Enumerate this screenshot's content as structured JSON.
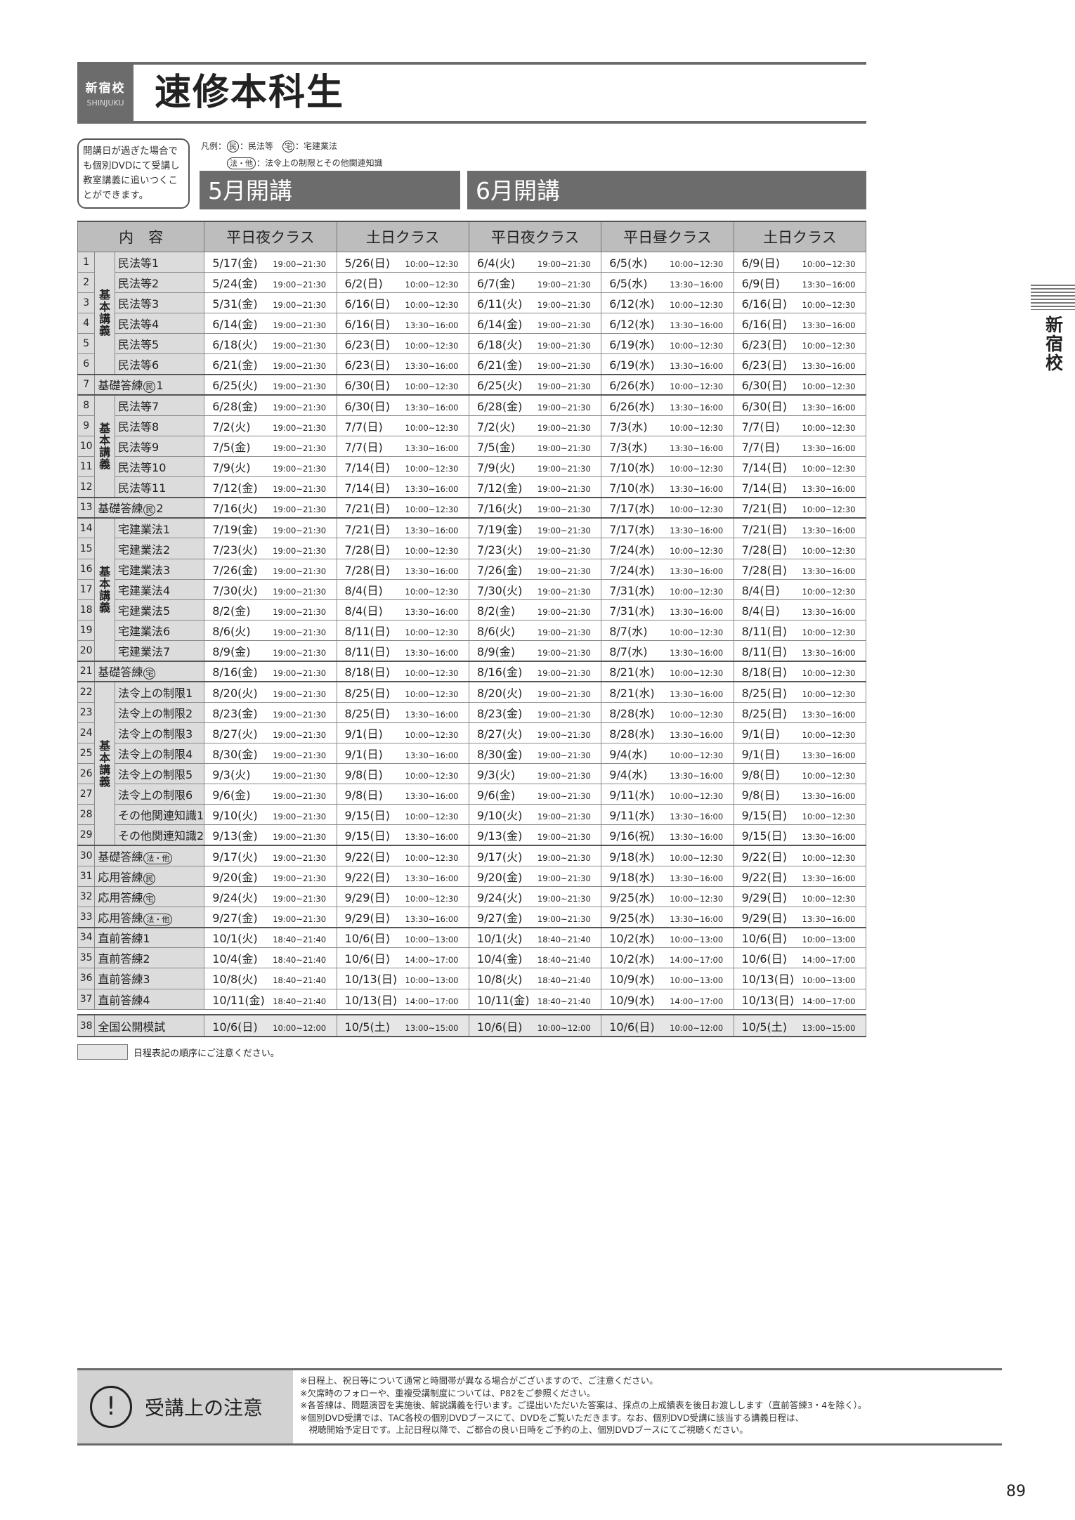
{
  "header": {
    "school": "新宿校",
    "school_en": "SHINJUKU",
    "title": "速修本科生"
  },
  "dvd_note": "開講日が過ぎた場合でも個別DVDにて受講し教室講義に追いつくことができます。",
  "legend": {
    "prefix": "凡例：",
    "items": [
      {
        "mark": "民",
        "text": "：民法等"
      },
      {
        "mark": "宅",
        "text": "：宅建業法"
      },
      {
        "mark": "法・他",
        "text": "：法令上の制限とその他関連知識"
      }
    ]
  },
  "months": [
    "5月開講",
    "6月開講"
  ],
  "columns": [
    "内　容",
    "平日夜クラス",
    "土日クラス",
    "平日夜クラス",
    "平日昼クラス",
    "土日クラス"
  ],
  "groups": [
    {
      "label": "基本講義",
      "from": 1,
      "to": 6
    },
    {
      "label": "基本講義",
      "from": 8,
      "to": 12
    },
    {
      "label": "基本講義",
      "from": 14,
      "to": 20
    },
    {
      "label": "基本講義",
      "from": 22,
      "to": 29
    }
  ],
  "rows": [
    {
      "n": "1",
      "label": "民法等1",
      "cells": [
        [
          "5/17(金)",
          "19:00~21:30"
        ],
        [
          "5/26(日)",
          "10:00~12:30"
        ],
        [
          "6/4(火)",
          "19:00~21:30"
        ],
        [
          "6/5(水)",
          "10:00~12:30"
        ],
        [
          "6/9(日)",
          "10:00~12:30"
        ]
      ]
    },
    {
      "n": "2",
      "label": "民法等2",
      "cells": [
        [
          "5/24(金)",
          "19:00~21:30"
        ],
        [
          "6/2(日)",
          "10:00~12:30"
        ],
        [
          "6/7(金)",
          "19:00~21:30"
        ],
        [
          "6/5(水)",
          "13:30~16:00"
        ],
        [
          "6/9(日)",
          "13:30~16:00"
        ]
      ]
    },
    {
      "n": "3",
      "label": "民法等3",
      "cells": [
        [
          "5/31(金)",
          "19:00~21:30"
        ],
        [
          "6/16(日)",
          "10:00~12:30"
        ],
        [
          "6/11(火)",
          "19:00~21:30"
        ],
        [
          "6/12(水)",
          "10:00~12:30"
        ],
        [
          "6/16(日)",
          "10:00~12:30"
        ]
      ]
    },
    {
      "n": "4",
      "label": "民法等4",
      "cells": [
        [
          "6/14(金)",
          "19:00~21:30"
        ],
        [
          "6/16(日)",
          "13:30~16:00"
        ],
        [
          "6/14(金)",
          "19:00~21:30"
        ],
        [
          "6/12(水)",
          "13:30~16:00"
        ],
        [
          "6/16(日)",
          "13:30~16:00"
        ]
      ]
    },
    {
      "n": "5",
      "label": "民法等5",
      "cells": [
        [
          "6/18(火)",
          "19:00~21:30"
        ],
        [
          "6/23(日)",
          "10:00~12:30"
        ],
        [
          "6/18(火)",
          "19:00~21:30"
        ],
        [
          "6/19(水)",
          "10:00~12:30"
        ],
        [
          "6/23(日)",
          "10:00~12:30"
        ]
      ]
    },
    {
      "n": "6",
      "label": "民法等6",
      "cells": [
        [
          "6/21(金)",
          "19:00~21:30"
        ],
        [
          "6/23(日)",
          "13:30~16:00"
        ],
        [
          "6/21(金)",
          "19:00~21:30"
        ],
        [
          "6/19(水)",
          "13:30~16:00"
        ],
        [
          "6/23(日)",
          "13:30~16:00"
        ]
      ]
    },
    {
      "n": "7",
      "label": "基礎答練",
      "mark": "民",
      "suffix": "1",
      "cells": [
        [
          "6/25(火)",
          "19:00~21:30"
        ],
        [
          "6/30(日)",
          "10:00~12:30"
        ],
        [
          "6/25(火)",
          "19:00~21:30"
        ],
        [
          "6/26(水)",
          "10:00~12:30"
        ],
        [
          "6/30(日)",
          "10:00~12:30"
        ]
      ]
    },
    {
      "n": "8",
      "label": "民法等7",
      "cells": [
        [
          "6/28(金)",
          "19:00~21:30"
        ],
        [
          "6/30(日)",
          "13:30~16:00"
        ],
        [
          "6/28(金)",
          "19:00~21:30"
        ],
        [
          "6/26(水)",
          "13:30~16:00"
        ],
        [
          "6/30(日)",
          "13:30~16:00"
        ]
      ]
    },
    {
      "n": "9",
      "label": "民法等8",
      "cells": [
        [
          "7/2(火)",
          "19:00~21:30"
        ],
        [
          "7/7(日)",
          "10:00~12:30"
        ],
        [
          "7/2(火)",
          "19:00~21:30"
        ],
        [
          "7/3(水)",
          "10:00~12:30"
        ],
        [
          "7/7(日)",
          "10:00~12:30"
        ]
      ]
    },
    {
      "n": "10",
      "label": "民法等9",
      "cells": [
        [
          "7/5(金)",
          "19:00~21:30"
        ],
        [
          "7/7(日)",
          "13:30~16:00"
        ],
        [
          "7/5(金)",
          "19:00~21:30"
        ],
        [
          "7/3(水)",
          "13:30~16:00"
        ],
        [
          "7/7(日)",
          "13:30~16:00"
        ]
      ]
    },
    {
      "n": "11",
      "label": "民法等10",
      "cells": [
        [
          "7/9(火)",
          "19:00~21:30"
        ],
        [
          "7/14(日)",
          "10:00~12:30"
        ],
        [
          "7/9(火)",
          "19:00~21:30"
        ],
        [
          "7/10(水)",
          "10:00~12:30"
        ],
        [
          "7/14(日)",
          "10:00~12:30"
        ]
      ]
    },
    {
      "n": "12",
      "label": "民法等11",
      "cells": [
        [
          "7/12(金)",
          "19:00~21:30"
        ],
        [
          "7/14(日)",
          "13:30~16:00"
        ],
        [
          "7/12(金)",
          "19:00~21:30"
        ],
        [
          "7/10(水)",
          "13:30~16:00"
        ],
        [
          "7/14(日)",
          "13:30~16:00"
        ]
      ]
    },
    {
      "n": "13",
      "label": "基礎答練",
      "mark": "民",
      "suffix": "2",
      "cells": [
        [
          "7/16(火)",
          "19:00~21:30"
        ],
        [
          "7/21(日)",
          "10:00~12:30"
        ],
        [
          "7/16(火)",
          "19:00~21:30"
        ],
        [
          "7/17(水)",
          "10:00~12:30"
        ],
        [
          "7/21(日)",
          "10:00~12:30"
        ]
      ]
    },
    {
      "n": "14",
      "label": "宅建業法1",
      "cells": [
        [
          "7/19(金)",
          "19:00~21:30"
        ],
        [
          "7/21(日)",
          "13:30~16:00"
        ],
        [
          "7/19(金)",
          "19:00~21:30"
        ],
        [
          "7/17(水)",
          "13:30~16:00"
        ],
        [
          "7/21(日)",
          "13:30~16:00"
        ]
      ]
    },
    {
      "n": "15",
      "label": "宅建業法2",
      "cells": [
        [
          "7/23(火)",
          "19:00~21:30"
        ],
        [
          "7/28(日)",
          "10:00~12:30"
        ],
        [
          "7/23(火)",
          "19:00~21:30"
        ],
        [
          "7/24(水)",
          "10:00~12:30"
        ],
        [
          "7/28(日)",
          "10:00~12:30"
        ]
      ]
    },
    {
      "n": "16",
      "label": "宅建業法3",
      "cells": [
        [
          "7/26(金)",
          "19:00~21:30"
        ],
        [
          "7/28(日)",
          "13:30~16:00"
        ],
        [
          "7/26(金)",
          "19:00~21:30"
        ],
        [
          "7/24(水)",
          "13:30~16:00"
        ],
        [
          "7/28(日)",
          "13:30~16:00"
        ]
      ]
    },
    {
      "n": "17",
      "label": "宅建業法4",
      "cells": [
        [
          "7/30(火)",
          "19:00~21:30"
        ],
        [
          "8/4(日)",
          "10:00~12:30"
        ],
        [
          "7/30(火)",
          "19:00~21:30"
        ],
        [
          "7/31(水)",
          "10:00~12:30"
        ],
        [
          "8/4(日)",
          "10:00~12:30"
        ]
      ]
    },
    {
      "n": "18",
      "label": "宅建業法5",
      "cells": [
        [
          "8/2(金)",
          "19:00~21:30"
        ],
        [
          "8/4(日)",
          "13:30~16:00"
        ],
        [
          "8/2(金)",
          "19:00~21:30"
        ],
        [
          "7/31(水)",
          "13:30~16:00"
        ],
        [
          "8/4(日)",
          "13:30~16:00"
        ]
      ]
    },
    {
      "n": "19",
      "label": "宅建業法6",
      "cells": [
        [
          "8/6(火)",
          "19:00~21:30"
        ],
        [
          "8/11(日)",
          "10:00~12:30"
        ],
        [
          "8/6(火)",
          "19:00~21:30"
        ],
        [
          "8/7(水)",
          "10:00~12:30"
        ],
        [
          "8/11(日)",
          "10:00~12:30"
        ]
      ]
    },
    {
      "n": "20",
      "label": "宅建業法7",
      "cells": [
        [
          "8/9(金)",
          "19:00~21:30"
        ],
        [
          "8/11(日)",
          "13:30~16:00"
        ],
        [
          "8/9(金)",
          "19:00~21:30"
        ],
        [
          "8/7(水)",
          "13:30~16:00"
        ],
        [
          "8/11(日)",
          "13:30~16:00"
        ]
      ]
    },
    {
      "n": "21",
      "label": "基礎答練",
      "mark": "宅",
      "suffix": "",
      "cells": [
        [
          "8/16(金)",
          "19:00~21:30"
        ],
        [
          "8/18(日)",
          "10:00~12:30"
        ],
        [
          "8/16(金)",
          "19:00~21:30"
        ],
        [
          "8/21(水)",
          "10:00~12:30"
        ],
        [
          "8/18(日)",
          "10:00~12:30"
        ]
      ]
    },
    {
      "n": "22",
      "label": "法令上の制限1",
      "cells": [
        [
          "8/20(火)",
          "19:00~21:30"
        ],
        [
          "8/25(日)",
          "10:00~12:30"
        ],
        [
          "8/20(火)",
          "19:00~21:30"
        ],
        [
          "8/21(水)",
          "13:30~16:00"
        ],
        [
          "8/25(日)",
          "10:00~12:30"
        ]
      ]
    },
    {
      "n": "23",
      "label": "法令上の制限2",
      "cells": [
        [
          "8/23(金)",
          "19:00~21:30"
        ],
        [
          "8/25(日)",
          "13:30~16:00"
        ],
        [
          "8/23(金)",
          "19:00~21:30"
        ],
        [
          "8/28(水)",
          "10:00~12:30"
        ],
        [
          "8/25(日)",
          "13:30~16:00"
        ]
      ]
    },
    {
      "n": "24",
      "label": "法令上の制限3",
      "cells": [
        [
          "8/27(火)",
          "19:00~21:30"
        ],
        [
          "9/1(日)",
          "10:00~12:30"
        ],
        [
          "8/27(火)",
          "19:00~21:30"
        ],
        [
          "8/28(水)",
          "13:30~16:00"
        ],
        [
          "9/1(日)",
          "10:00~12:30"
        ]
      ]
    },
    {
      "n": "25",
      "label": "法令上の制限4",
      "cells": [
        [
          "8/30(金)",
          "19:00~21:30"
        ],
        [
          "9/1(日)",
          "13:30~16:00"
        ],
        [
          "8/30(金)",
          "19:00~21:30"
        ],
        [
          "9/4(水)",
          "10:00~12:30"
        ],
        [
          "9/1(日)",
          "13:30~16:00"
        ]
      ]
    },
    {
      "n": "26",
      "label": "法令上の制限5",
      "cells": [
        [
          "9/3(火)",
          "19:00~21:30"
        ],
        [
          "9/8(日)",
          "10:00~12:30"
        ],
        [
          "9/3(火)",
          "19:00~21:30"
        ],
        [
          "9/4(水)",
          "13:30~16:00"
        ],
        [
          "9/8(日)",
          "10:00~12:30"
        ]
      ]
    },
    {
      "n": "27",
      "label": "法令上の制限6",
      "cells": [
        [
          "9/6(金)",
          "19:00~21:30"
        ],
        [
          "9/8(日)",
          "13:30~16:00"
        ],
        [
          "9/6(金)",
          "19:00~21:30"
        ],
        [
          "9/11(水)",
          "10:00~12:30"
        ],
        [
          "9/8(日)",
          "13:30~16:00"
        ]
      ]
    },
    {
      "n": "28",
      "label": "その他関連知識1",
      "cells": [
        [
          "9/10(火)",
          "19:00~21:30"
        ],
        [
          "9/15(日)",
          "10:00~12:30"
        ],
        [
          "9/10(火)",
          "19:00~21:30"
        ],
        [
          "9/11(水)",
          "13:30~16:00"
        ],
        [
          "9/15(日)",
          "10:00~12:30"
        ]
      ]
    },
    {
      "n": "29",
      "label": "その他関連知識2",
      "cells": [
        [
          "9/13(金)",
          "19:00~21:30"
        ],
        [
          "9/15(日)",
          "13:30~16:00"
        ],
        [
          "9/13(金)",
          "19:00~21:30"
        ],
        [
          "9/16(祝)",
          "13:30~16:00"
        ],
        [
          "9/15(日)",
          "13:30~16:00"
        ]
      ]
    },
    {
      "n": "30",
      "label": "基礎答練",
      "mark": "法・他",
      "suffix": "",
      "cells": [
        [
          "9/17(火)",
          "19:00~21:30"
        ],
        [
          "9/22(日)",
          "10:00~12:30"
        ],
        [
          "9/17(火)",
          "19:00~21:30"
        ],
        [
          "9/18(水)",
          "10:00~12:30"
        ],
        [
          "9/22(日)",
          "10:00~12:30"
        ]
      ]
    },
    {
      "n": "31",
      "label": "応用答練",
      "mark": "民",
      "suffix": "",
      "cells": [
        [
          "9/20(金)",
          "19:00~21:30"
        ],
        [
          "9/22(日)",
          "13:30~16:00"
        ],
        [
          "9/20(金)",
          "19:00~21:30"
        ],
        [
          "9/18(水)",
          "13:30~16:00"
        ],
        [
          "9/22(日)",
          "13:30~16:00"
        ]
      ]
    },
    {
      "n": "32",
      "label": "応用答練",
      "mark": "宅",
      "suffix": "",
      "cells": [
        [
          "9/24(火)",
          "19:00~21:30"
        ],
        [
          "9/29(日)",
          "10:00~12:30"
        ],
        [
          "9/24(火)",
          "19:00~21:30"
        ],
        [
          "9/25(水)",
          "10:00~12:30"
        ],
        [
          "9/29(日)",
          "10:00~12:30"
        ]
      ]
    },
    {
      "n": "33",
      "label": "応用答練",
      "mark": "法・他",
      "suffix": "",
      "cells": [
        [
          "9/27(金)",
          "19:00~21:30"
        ],
        [
          "9/29(日)",
          "13:30~16:00"
        ],
        [
          "9/27(金)",
          "19:00~21:30"
        ],
        [
          "9/25(水)",
          "13:30~16:00"
        ],
        [
          "9/29(日)",
          "13:30~16:00"
        ]
      ]
    },
    {
      "n": "34",
      "label": "直前答練1",
      "cells": [
        [
          "10/1(火)",
          "18:40~21:40"
        ],
        [
          "10/6(日)",
          "10:00~13:00"
        ],
        [
          "10/1(火)",
          "18:40~21:40"
        ],
        [
          "10/2(水)",
          "10:00~13:00"
        ],
        [
          "10/6(日)",
          "10:00~13:00"
        ]
      ]
    },
    {
      "n": "35",
      "label": "直前答練2",
      "cells": [
        [
          "10/4(金)",
          "18:40~21:40"
        ],
        [
          "10/6(日)",
          "14:00~17:00"
        ],
        [
          "10/4(金)",
          "18:40~21:40"
        ],
        [
          "10/2(水)",
          "14:00~17:00"
        ],
        [
          "10/6(日)",
          "14:00~17:00"
        ]
      ]
    },
    {
      "n": "36",
      "label": "直前答練3",
      "cells": [
        [
          "10/8(火)",
          "18:40~21:40"
        ],
        [
          "10/13(日)",
          "10:00~13:00"
        ],
        [
          "10/8(火)",
          "18:40~21:40"
        ],
        [
          "10/9(水)",
          "10:00~13:00"
        ],
        [
          "10/13(日)",
          "10:00~13:00"
        ]
      ]
    },
    {
      "n": "37",
      "label": "直前答練4",
      "cells": [
        [
          "10/11(金)",
          "18:40~21:40"
        ],
        [
          "10/13(日)",
          "14:00~17:00"
        ],
        [
          "10/11(金)",
          "18:40~21:40"
        ],
        [
          "10/9(水)",
          "14:00~17:00"
        ],
        [
          "10/13(日)",
          "14:00~17:00"
        ]
      ]
    },
    {
      "n": "38",
      "label": "全国公開模試",
      "mock": true,
      "cells": [
        [
          "10/6(日)",
          "10:00~12:00"
        ],
        [
          "10/5(土)",
          "13:00~15:00"
        ],
        [
          "10/6(日)",
          "10:00~12:00"
        ],
        [
          "10/6(日)",
          "10:00~12:00"
        ],
        [
          "10/5(土)",
          "13:00~15:00"
        ]
      ]
    }
  ],
  "order_note": "日程表記の順序にご注意ください。",
  "notice": {
    "title": "受講上の注意",
    "icon": "exclamation-circle-icon",
    "lines": [
      "※日程上、祝日等について通常と時間帯が異なる場合がございますので、ご注意ください。",
      "※欠席時のフォローや、重複受講制度については、P82をご参照ください。",
      "※各答練は、問題演習を実施後、解説講義を行います。ご提出いただいた答案は、採点の上成績表を後日お渡しします（直前答練3・4を除く）。",
      "※個別DVD受講では、TAC各校の個別DVDブースにて、DVDをご覧いただきます。なお、個別DVD受講に該当する講義日程は、",
      "　視聴開始予定日です。上記日程以降で、ご都合の良い日時をご予約の上、個別DVDブースにてご視聴ください。"
    ]
  },
  "side_tab": "新宿校",
  "page_number": "89"
}
